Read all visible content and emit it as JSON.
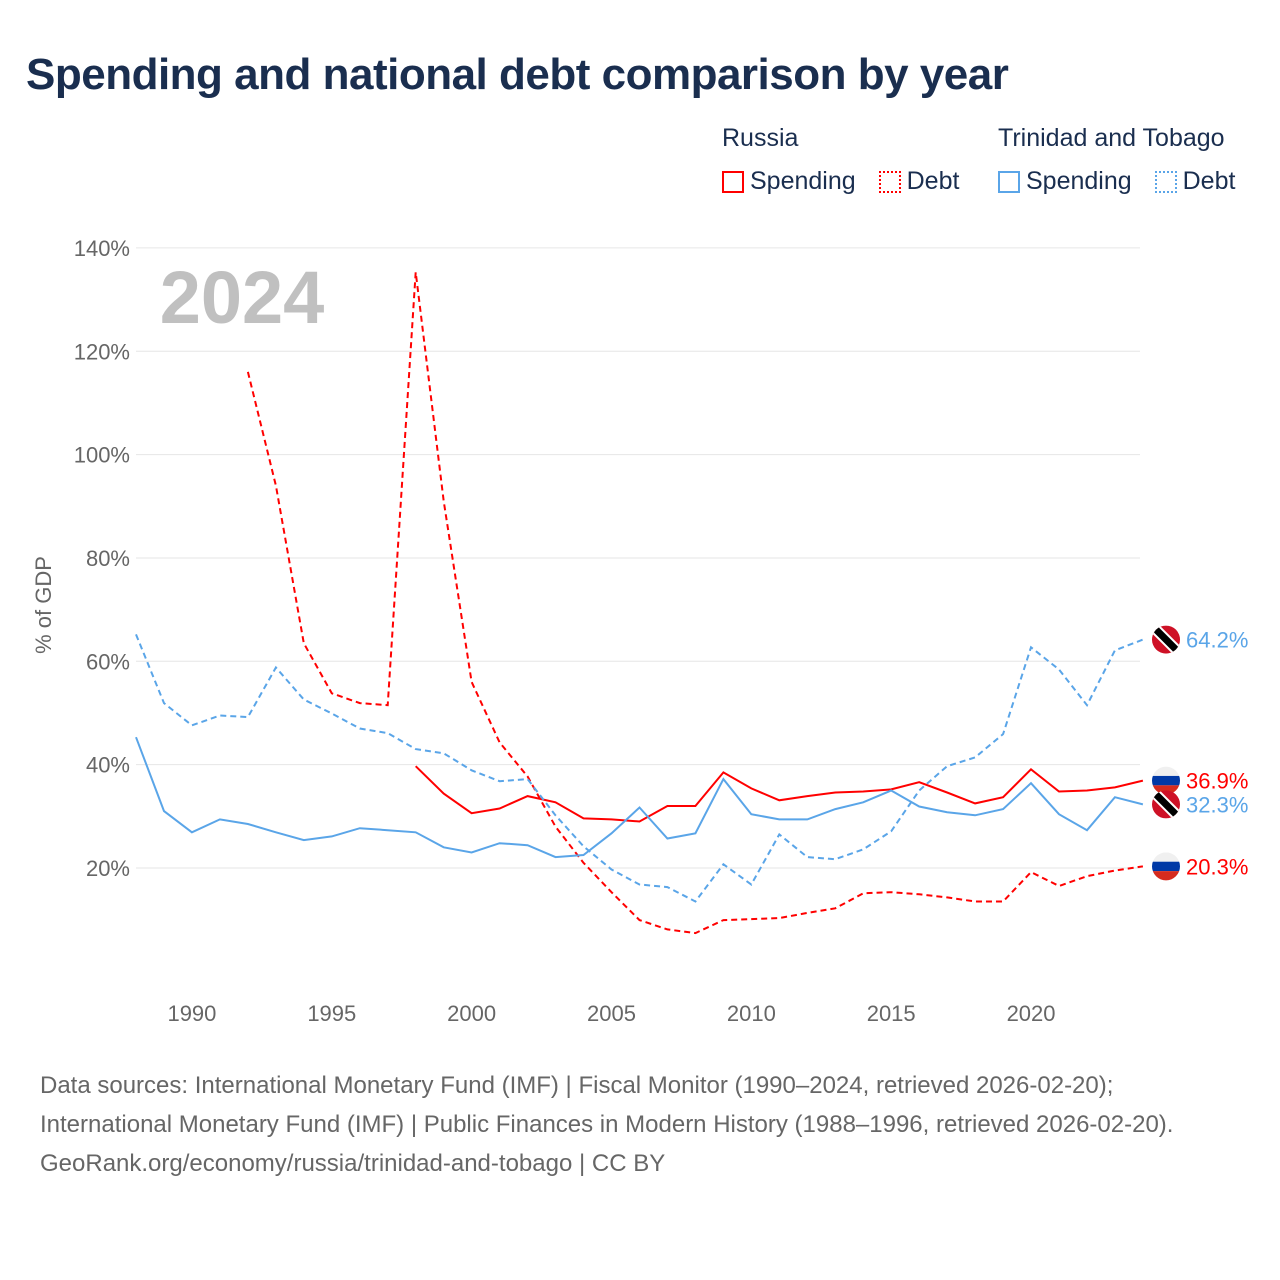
{
  "title": "Spending and national debt comparison by year",
  "legend": {
    "groups": [
      {
        "country": "Russia",
        "color": "#ff0000",
        "items": [
          "Spending",
          "Debt"
        ]
      },
      {
        "country": "Trinidad and Tobago",
        "color": "#5aa5e8",
        "items": [
          "Spending",
          "Debt"
        ]
      }
    ]
  },
  "year_watermark": "2024",
  "footer": {
    "sources": "Data sources: International Monetary Fund (IMF) | Fiscal Monitor (1990–2024, retrieved 2026-02-20); International Monetary Fund (IMF) | Public Finances in Modern History (1988–1996, retrieved 2026-02-20).",
    "credit": "GeoRank.org/economy/russia/trinidad-and-tobago | CC BY"
  },
  "chart_data": {
    "type": "line",
    "title": "Spending and national debt comparison by year",
    "xlabel": "",
    "ylabel": "% of GDP",
    "xlim": [
      1988,
      2024
    ],
    "ylim": [
      0,
      140
    ],
    "xticks": [
      1990,
      1995,
      2000,
      2005,
      2010,
      2015,
      2020
    ],
    "yticks": [
      20,
      40,
      60,
      80,
      100,
      120,
      140
    ],
    "ytick_labels": [
      "20%",
      "40%",
      "60%",
      "80%",
      "100%",
      "120%",
      "140%"
    ],
    "grid": true,
    "legend_position": "top-right",
    "series": [
      {
        "name": "Russia Spending",
        "color": "#ff0000",
        "dash": false,
        "start": 1998,
        "values": [
          39.7,
          34.4,
          30.6,
          31.5,
          33.9,
          32.7,
          29.6,
          29.4,
          29.0,
          32.0,
          32.0,
          38.5,
          35.4,
          33.1,
          33.9,
          34.6,
          34.8,
          35.2,
          36.6,
          34.6,
          32.5,
          33.7,
          39.1,
          34.8,
          35.0,
          35.6,
          36.9
        ],
        "end_label": "36.9%",
        "flag": "russia"
      },
      {
        "name": "Russia Debt",
        "color": "#ff0000",
        "dash": true,
        "start": 1992,
        "values": [
          116,
          94,
          63.5,
          53.8,
          51.9,
          51.5,
          135.3,
          91,
          56,
          44.3,
          37.7,
          28,
          21,
          15.3,
          9.9,
          8.1,
          7.4,
          9.9,
          10.1,
          10.3,
          11.3,
          12.2,
          15.1,
          15.3,
          14.9,
          14.3,
          13.5,
          13.5,
          19.2,
          16.5,
          18.4,
          19.5,
          20.3
        ],
        "end_label": "20.3%",
        "flag": "russia"
      },
      {
        "name": "Trinidad and Tobago Spending",
        "color": "#5aa5e8",
        "dash": false,
        "start": 1988,
        "values": [
          45.3,
          31,
          26.9,
          29.4,
          28.5,
          26.9,
          25.4,
          26.1,
          27.7,
          27.3,
          26.9,
          24,
          23,
          24.8,
          24.4,
          22.1,
          22.5,
          26.7,
          31.7,
          25.7,
          26.7,
          37.2,
          30.4,
          29.4,
          29.4,
          31.4,
          32.7,
          35,
          31.9,
          30.8,
          30.2,
          31.4,
          36.4,
          30.4,
          27.3,
          33.7,
          32.3
        ],
        "end_label": "32.3%",
        "flag": "tt"
      },
      {
        "name": "Trinidad and Tobago Debt",
        "color": "#5aa5e8",
        "dash": true,
        "start": 1988,
        "values": [
          65.2,
          51.9,
          47.6,
          49.5,
          49.2,
          58.8,
          52.6,
          49.9,
          47,
          46.1,
          43,
          42.2,
          38.9,
          36.8,
          37.2,
          30.2,
          24.2,
          19.7,
          16.8,
          16.3,
          13.5,
          20.7,
          16.8,
          26.5,
          22.1,
          21.7,
          23.6,
          27.1,
          35,
          39.7,
          41.4,
          45.9,
          62.7,
          58.4,
          51.5,
          62.1,
          64.2
        ],
        "end_label": "64.2%",
        "flag": "tt"
      }
    ]
  }
}
